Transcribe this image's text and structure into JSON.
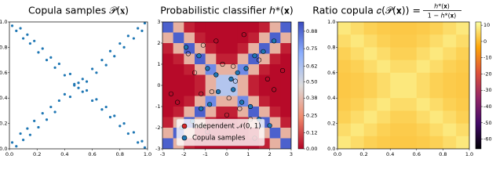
{
  "chart_data": [
    {
      "type": "scatter",
      "title": "Copula samples 𝒫(𝐱)",
      "xlim": [
        0,
        1
      ],
      "ylim": [
        0,
        1
      ],
      "xticks": [
        {
          "value": 0,
          "label": "0.0"
        },
        {
          "value": 0.2,
          "label": "0.2"
        },
        {
          "value": 0.4,
          "label": "0.4"
        },
        {
          "value": 0.6,
          "label": "0.6"
        },
        {
          "value": 0.8,
          "label": "0.8"
        },
        {
          "value": 1,
          "label": "1.0"
        }
      ],
      "yticks": [
        {
          "value": 0,
          "label": "0.0"
        },
        {
          "value": 0.2,
          "label": "0.2"
        },
        {
          "value": 0.4,
          "label": "0.4"
        },
        {
          "value": 0.6,
          "label": "0.6"
        },
        {
          "value": 0.8,
          "label": "0.8"
        },
        {
          "value": 1,
          "label": "1.0"
        }
      ],
      "color": "#1f77b4",
      "x": [
        0.02,
        0.05,
        0.08,
        0.1,
        0.13,
        0.15,
        0.18,
        0.21,
        0.24,
        0.27,
        0.3,
        0.33,
        0.36,
        0.4,
        0.44,
        0.47,
        0.5,
        0.53,
        0.56,
        0.6,
        0.63,
        0.67,
        0.7,
        0.73,
        0.76,
        0.8,
        0.83,
        0.86,
        0.9,
        0.93,
        0.96,
        0.98,
        0.02,
        0.05,
        0.08,
        0.1,
        0.13,
        0.15,
        0.18,
        0.21,
        0.24,
        0.27,
        0.3,
        0.33,
        0.36,
        0.4,
        0.44,
        0.47,
        0.5,
        0.53,
        0.56,
        0.6,
        0.63,
        0.67,
        0.7,
        0.73,
        0.76,
        0.8,
        0.83,
        0.86,
        0.9,
        0.93,
        0.96,
        0.98
      ],
      "y": [
        0.05,
        0.02,
        0.12,
        0.07,
        0.16,
        0.11,
        0.22,
        0.17,
        0.28,
        0.23,
        0.33,
        0.29,
        0.38,
        0.43,
        0.41,
        0.5,
        0.48,
        0.55,
        0.53,
        0.63,
        0.6,
        0.7,
        0.66,
        0.77,
        0.73,
        0.83,
        0.8,
        0.89,
        0.87,
        0.95,
        0.93,
        0.99,
        0.97,
        0.93,
        0.95,
        0.87,
        0.9,
        0.83,
        0.85,
        0.76,
        0.79,
        0.7,
        0.72,
        0.64,
        0.67,
        0.58,
        0.59,
        0.51,
        0.52,
        0.45,
        0.46,
        0.38,
        0.39,
        0.31,
        0.33,
        0.25,
        0.26,
        0.18,
        0.2,
        0.12,
        0.13,
        0.05,
        0.06,
        0.01
      ]
    },
    {
      "type": "heatmap",
      "title": "Probabilistic classifier ℎ*(𝐱)",
      "xlim": [
        -3,
        3
      ],
      "ylim": [
        -3,
        3
      ],
      "xticks": [
        -3,
        -2,
        -1,
        0,
        1,
        2,
        3
      ],
      "yticks": [
        -3,
        -2,
        -1,
        0,
        1,
        2,
        3
      ],
      "colormap": [
        "#b40426",
        "#f08a6c",
        "#dddcdc",
        "#8db0fe",
        "#3b4cc0"
      ],
      "clim": [
        0,
        0.95
      ],
      "cticks": [
        {
          "value": 0,
          "label": "0.00"
        },
        0.12,
        0.25,
        0.38,
        {
          "value": 0.5,
          "label": "0.50"
        },
        0.62,
        0.75,
        0.88
      ],
      "z": [
        [
          0.9,
          0.35,
          0.05,
          0.01,
          0.01,
          0.01,
          0.01,
          0.01,
          0.01,
          0.05,
          0.35,
          0.9
        ],
        [
          0.35,
          0.9,
          0.35,
          0.05,
          0.01,
          0.01,
          0.01,
          0.01,
          0.05,
          0.35,
          0.9,
          0.35
        ],
        [
          0.05,
          0.35,
          0.9,
          0.35,
          0.05,
          0.01,
          0.01,
          0.05,
          0.35,
          0.9,
          0.35,
          0.05
        ],
        [
          0.01,
          0.05,
          0.35,
          0.9,
          0.35,
          0.05,
          0.05,
          0.35,
          0.9,
          0.35,
          0.05,
          0.01
        ],
        [
          0.01,
          0.01,
          0.05,
          0.35,
          0.8,
          0.35,
          0.35,
          0.8,
          0.35,
          0.05,
          0.01,
          0.01
        ],
        [
          0.01,
          0.01,
          0.01,
          0.05,
          0.35,
          0.6,
          0.6,
          0.35,
          0.05,
          0.01,
          0.01,
          0.01
        ],
        [
          0.01,
          0.01,
          0.01,
          0.05,
          0.35,
          0.6,
          0.6,
          0.35,
          0.05,
          0.01,
          0.01,
          0.01
        ],
        [
          0.01,
          0.01,
          0.05,
          0.35,
          0.8,
          0.35,
          0.35,
          0.8,
          0.35,
          0.05,
          0.01,
          0.01
        ],
        [
          0.01,
          0.05,
          0.35,
          0.9,
          0.35,
          0.05,
          0.05,
          0.35,
          0.9,
          0.35,
          0.05,
          0.01
        ],
        [
          0.05,
          0.35,
          0.9,
          0.35,
          0.05,
          0.01,
          0.01,
          0.05,
          0.35,
          0.9,
          0.35,
          0.05
        ],
        [
          0.35,
          0.9,
          0.35,
          0.05,
          0.01,
          0.01,
          0.01,
          0.01,
          0.05,
          0.35,
          0.9,
          0.35
        ],
        [
          0.9,
          0.35,
          0.05,
          0.01,
          0.01,
          0.01,
          0.01,
          0.01,
          0.01,
          0.05,
          0.35,
          0.9
        ]
      ],
      "legend": "lower center",
      "series": [
        {
          "name": "Independent 𝒩(0, 1)",
          "color": "#d62728",
          "x": [
            -1.8,
            -1.2,
            -0.5,
            0.3,
            1.1,
            1.9,
            -2.3,
            -0.9,
            0.1,
            0.8,
            1.5,
            -1.5,
            -0.2,
            0.6,
            2.2,
            -0.7,
            0.4,
            1.3,
            -1.1,
            0.0,
            2.6,
            -2.6
          ],
          "y": [
            1.5,
            -0.4,
            2.1,
            0.9,
            -1.6,
            0.3,
            -0.8,
            -2.2,
            -0.6,
            2.4,
            1.2,
            0.6,
            1.0,
            -1.1,
            -0.2,
            -0.3,
            0.2,
            -2.5,
            1.9,
            -1.4,
            0.7,
            -0.4
          ]
        },
        {
          "name": "Copula samples",
          "color": "#1f77b4",
          "x": [
            -2.1,
            -1.6,
            -1.2,
            -0.8,
            -0.4,
            0.2,
            0.5,
            0.9,
            1.3,
            1.7,
            2.2,
            -1.9,
            -1.3,
            -0.9,
            -0.5,
            0.3,
            0.7,
            1.1,
            1.5,
            2.0
          ],
          "y": [
            -2.0,
            -1.7,
            -1.1,
            -0.9,
            -0.3,
            0.3,
            0.6,
            0.8,
            1.4,
            1.6,
            2.1,
            1.8,
            1.4,
            0.8,
            0.5,
            -0.2,
            -0.8,
            -1.0,
            -1.6,
            -1.9
          ]
        }
      ]
    },
    {
      "type": "heatmap",
      "title": "Ratio copula 𝑐(𝒫(𝐱)) =",
      "title_numerator": "ℎ*(𝐱)",
      "title_denominator": "1 − ℎ*(𝐱)",
      "xlim": [
        0,
        1
      ],
      "ylim": [
        0,
        1
      ],
      "xticks": [
        {
          "value": 0,
          "label": "0.0"
        },
        {
          "value": 0.2,
          "label": "0.2"
        },
        {
          "value": 0.4,
          "label": "0.4"
        },
        {
          "value": 0.6,
          "label": "0.6"
        },
        {
          "value": 0.8,
          "label": "0.8"
        },
        {
          "value": 1,
          "label": "1.0"
        }
      ],
      "yticks": [
        {
          "value": 0,
          "label": "0.0"
        },
        {
          "value": 0.2,
          "label": "0.2"
        },
        {
          "value": 0.4,
          "label": "0.4"
        },
        {
          "value": 0.6,
          "label": "0.6"
        },
        {
          "value": 0.8,
          "label": "0.8"
        },
        {
          "value": 1,
          "label": "1.0"
        }
      ],
      "colormap": [
        "#000004",
        "#420a68",
        "#932667",
        "#dd513a",
        "#fca50a",
        "#fcffa4"
      ],
      "clim": [
        -66,
        12
      ],
      "cticks": [
        10,
        0,
        -10,
        -20,
        -30,
        -40,
        -50,
        -60
      ],
      "z": [
        [
          8,
          6,
          4,
          3,
          2.5,
          2.5,
          3,
          4,
          6,
          8
        ],
        [
          6,
          8,
          6,
          4,
          3,
          3,
          4,
          6,
          8,
          6
        ],
        [
          4,
          6,
          8,
          6,
          4,
          4,
          6,
          8,
          6,
          4
        ],
        [
          3,
          4,
          6,
          8,
          6,
          6,
          8,
          6,
          4,
          3
        ],
        [
          2.5,
          3,
          4,
          6,
          8,
          8,
          6,
          4,
          3,
          2.5
        ],
        [
          2.5,
          3,
          4,
          6,
          8,
          8,
          6,
          4,
          3,
          2.5
        ],
        [
          3,
          4,
          6,
          8,
          6,
          6,
          8,
          6,
          4,
          3
        ],
        [
          4,
          6,
          8,
          6,
          4,
          4,
          6,
          8,
          6,
          4
        ],
        [
          6,
          8,
          6,
          4,
          3,
          3,
          4,
          6,
          8,
          6
        ],
        [
          8,
          6,
          4,
          3,
          2.5,
          2.5,
          3,
          4,
          6,
          8
        ]
      ]
    }
  ]
}
